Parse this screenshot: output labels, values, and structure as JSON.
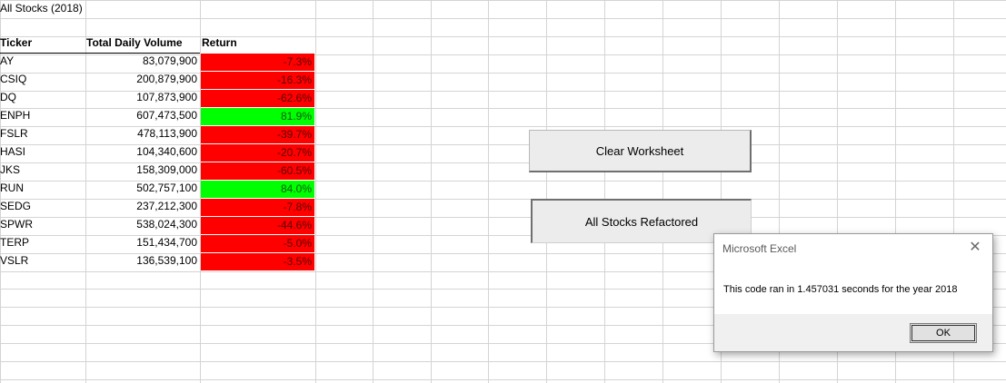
{
  "sheet": {
    "title": "All Stocks (2018)",
    "headers": {
      "ticker": "Ticker",
      "volume": "Total Daily Volume",
      "return": "Return"
    },
    "rows": [
      {
        "ticker": "AY",
        "volume": "83,079,900",
        "return": "-7.3%",
        "positive": false
      },
      {
        "ticker": "CSIQ",
        "volume": "200,879,900",
        "return": "-16.3%",
        "positive": false
      },
      {
        "ticker": "DQ",
        "volume": "107,873,900",
        "return": "-62.6%",
        "positive": false
      },
      {
        "ticker": "ENPH",
        "volume": "607,473,500",
        "return": "81.9%",
        "positive": true
      },
      {
        "ticker": "FSLR",
        "volume": "478,113,900",
        "return": "-39.7%",
        "positive": false
      },
      {
        "ticker": "HASI",
        "volume": "104,340,600",
        "return": "-20.7%",
        "positive": false
      },
      {
        "ticker": "JKS",
        "volume": "158,309,000",
        "return": "-60.5%",
        "positive": false
      },
      {
        "ticker": "RUN",
        "volume": "502,757,100",
        "return": "84.0%",
        "positive": true
      },
      {
        "ticker": "SEDG",
        "volume": "237,212,300",
        "return": "-7.8%",
        "positive": false
      },
      {
        "ticker": "SPWR",
        "volume": "538,024,300",
        "return": "-44.6%",
        "positive": false
      },
      {
        "ticker": "TERP",
        "volume": "151,434,700",
        "return": "-5.0%",
        "positive": false
      },
      {
        "ticker": "VSLR",
        "volume": "136,539,100",
        "return": "-3.5%",
        "positive": false
      }
    ]
  },
  "colors": {
    "negative_fill": "#ff0000",
    "positive_fill": "#00ff00",
    "gridline": "#d4d4d4"
  },
  "buttons": {
    "clear": "Clear Worksheet",
    "refactored": "All Stocks Refactored"
  },
  "dialog": {
    "title": "Microsoft Excel",
    "message": "This code ran in 1.457031 seconds for the year 2018",
    "ok": "OK",
    "close_icon": "close-icon"
  }
}
